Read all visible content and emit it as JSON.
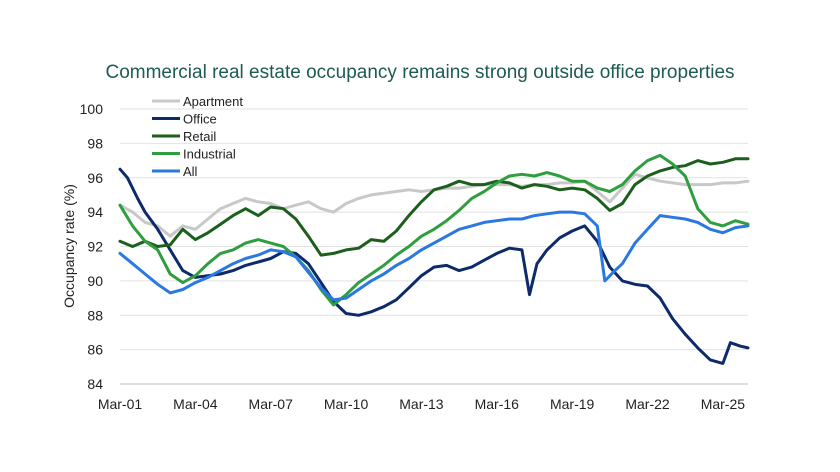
{
  "chart_data": {
    "type": "line",
    "title": "Commercial real estate occupancy remains strong outside office properties",
    "xlabel": "",
    "ylabel": "Occupancy rate (%)",
    "ylim": [
      84,
      100
    ],
    "yticks": [
      84,
      86,
      88,
      90,
      92,
      94,
      96,
      98,
      100
    ],
    "x_tick_labels": [
      "Mar-01",
      "Mar-04",
      "Mar-07",
      "Mar-10",
      "Mar-13",
      "Mar-16",
      "Mar-19",
      "Mar-22",
      "Mar-25"
    ],
    "x_start_year": 2001,
    "x_end_year": 2026,
    "grid": "horizontal",
    "legend_position": "top-left",
    "series": [
      {
        "name": "Apartment",
        "color": "#c8c8c8",
        "points": [
          [
            2001.0,
            94.4
          ],
          [
            2001.5,
            94.0
          ],
          [
            2002.0,
            93.4
          ],
          [
            2002.5,
            93.2
          ],
          [
            2003.0,
            92.6
          ],
          [
            2003.5,
            93.2
          ],
          [
            2004.0,
            93.0
          ],
          [
            2004.5,
            93.6
          ],
          [
            2005.0,
            94.2
          ],
          [
            2005.5,
            94.5
          ],
          [
            2006.0,
            94.8
          ],
          [
            2006.5,
            94.6
          ],
          [
            2007.0,
            94.5
          ],
          [
            2007.5,
            94.2
          ],
          [
            2008.0,
            94.4
          ],
          [
            2008.5,
            94.6
          ],
          [
            2009.0,
            94.2
          ],
          [
            2009.5,
            94.0
          ],
          [
            2010.0,
            94.5
          ],
          [
            2010.5,
            94.8
          ],
          [
            2011.0,
            95.0
          ],
          [
            2011.5,
            95.1
          ],
          [
            2012.0,
            95.2
          ],
          [
            2012.5,
            95.3
          ],
          [
            2013.0,
            95.2
          ],
          [
            2013.5,
            95.3
          ],
          [
            2014.0,
            95.4
          ],
          [
            2014.5,
            95.4
          ],
          [
            2015.0,
            95.5
          ],
          [
            2015.5,
            95.6
          ],
          [
            2016.0,
            95.6
          ],
          [
            2016.5,
            95.6
          ],
          [
            2017.0,
            95.5
          ],
          [
            2017.5,
            95.6
          ],
          [
            2018.0,
            95.6
          ],
          [
            2018.5,
            95.7
          ],
          [
            2019.0,
            95.7
          ],
          [
            2019.5,
            95.8
          ],
          [
            2020.0,
            95.2
          ],
          [
            2020.5,
            94.6
          ],
          [
            2021.0,
            95.4
          ],
          [
            2021.5,
            96.2
          ],
          [
            2022.0,
            96.0
          ],
          [
            2022.5,
            95.8
          ],
          [
            2023.0,
            95.7
          ],
          [
            2023.5,
            95.6
          ],
          [
            2024.0,
            95.6
          ],
          [
            2024.5,
            95.6
          ],
          [
            2025.0,
            95.7
          ],
          [
            2025.5,
            95.7
          ],
          [
            2026.0,
            95.8
          ]
        ]
      },
      {
        "name": "Office",
        "color": "#0d2a6b",
        "points": [
          [
            2001.0,
            96.5
          ],
          [
            2001.3,
            96.0
          ],
          [
            2001.7,
            94.8
          ],
          [
            2002.0,
            94.0
          ],
          [
            2002.5,
            93.0
          ],
          [
            2003.0,
            91.8
          ],
          [
            2003.5,
            90.6
          ],
          [
            2004.0,
            90.2
          ],
          [
            2004.5,
            90.3
          ],
          [
            2005.0,
            90.4
          ],
          [
            2005.5,
            90.6
          ],
          [
            2006.0,
            90.9
          ],
          [
            2006.5,
            91.1
          ],
          [
            2007.0,
            91.3
          ],
          [
            2007.5,
            91.7
          ],
          [
            2008.0,
            91.6
          ],
          [
            2008.5,
            91.0
          ],
          [
            2009.0,
            89.9
          ],
          [
            2009.5,
            88.8
          ],
          [
            2010.0,
            88.1
          ],
          [
            2010.5,
            88.0
          ],
          [
            2011.0,
            88.2
          ],
          [
            2011.5,
            88.5
          ],
          [
            2012.0,
            88.9
          ],
          [
            2012.5,
            89.6
          ],
          [
            2013.0,
            90.3
          ],
          [
            2013.5,
            90.8
          ],
          [
            2014.0,
            90.9
          ],
          [
            2014.5,
            90.6
          ],
          [
            2015.0,
            90.8
          ],
          [
            2015.5,
            91.2
          ],
          [
            2016.0,
            91.6
          ],
          [
            2016.5,
            91.9
          ],
          [
            2017.0,
            91.8
          ],
          [
            2017.3,
            89.2
          ],
          [
            2017.6,
            91.0
          ],
          [
            2018.0,
            91.8
          ],
          [
            2018.5,
            92.5
          ],
          [
            2019.0,
            92.9
          ],
          [
            2019.5,
            93.2
          ],
          [
            2020.0,
            92.3
          ],
          [
            2020.5,
            90.8
          ],
          [
            2021.0,
            90.0
          ],
          [
            2021.5,
            89.8
          ],
          [
            2022.0,
            89.7
          ],
          [
            2022.5,
            89.0
          ],
          [
            2023.0,
            87.8
          ],
          [
            2023.5,
            86.9
          ],
          [
            2024.0,
            86.1
          ],
          [
            2024.5,
            85.4
          ],
          [
            2025.0,
            85.2
          ],
          [
            2025.3,
            86.4
          ],
          [
            2025.7,
            86.2
          ],
          [
            2026.0,
            86.1
          ]
        ]
      },
      {
        "name": "Retail",
        "color": "#1c5e1c",
        "points": [
          [
            2001.0,
            92.3
          ],
          [
            2001.5,
            92.0
          ],
          [
            2002.0,
            92.3
          ],
          [
            2002.5,
            92.0
          ],
          [
            2003.0,
            92.1
          ],
          [
            2003.5,
            93.0
          ],
          [
            2004.0,
            92.4
          ],
          [
            2004.5,
            92.8
          ],
          [
            2005.0,
            93.3
          ],
          [
            2005.5,
            93.8
          ],
          [
            2006.0,
            94.2
          ],
          [
            2006.5,
            93.8
          ],
          [
            2007.0,
            94.3
          ],
          [
            2007.5,
            94.2
          ],
          [
            2008.0,
            93.6
          ],
          [
            2008.5,
            92.6
          ],
          [
            2009.0,
            91.5
          ],
          [
            2009.5,
            91.6
          ],
          [
            2010.0,
            91.8
          ],
          [
            2010.5,
            91.9
          ],
          [
            2011.0,
            92.4
          ],
          [
            2011.5,
            92.3
          ],
          [
            2012.0,
            92.9
          ],
          [
            2012.5,
            93.8
          ],
          [
            2013.0,
            94.6
          ],
          [
            2013.5,
            95.3
          ],
          [
            2014.0,
            95.5
          ],
          [
            2014.5,
            95.8
          ],
          [
            2015.0,
            95.6
          ],
          [
            2015.5,
            95.6
          ],
          [
            2016.0,
            95.8
          ],
          [
            2016.5,
            95.7
          ],
          [
            2017.0,
            95.4
          ],
          [
            2017.5,
            95.6
          ],
          [
            2018.0,
            95.5
          ],
          [
            2018.5,
            95.3
          ],
          [
            2019.0,
            95.4
          ],
          [
            2019.5,
            95.3
          ],
          [
            2020.0,
            94.8
          ],
          [
            2020.5,
            94.1
          ],
          [
            2021.0,
            94.5
          ],
          [
            2021.5,
            95.6
          ],
          [
            2022.0,
            96.1
          ],
          [
            2022.5,
            96.4
          ],
          [
            2023.0,
            96.6
          ],
          [
            2023.5,
            96.7
          ],
          [
            2024.0,
            97.0
          ],
          [
            2024.5,
            96.8
          ],
          [
            2025.0,
            96.9
          ],
          [
            2025.5,
            97.1
          ],
          [
            2026.0,
            97.1
          ]
        ]
      },
      {
        "name": "Industrial",
        "color": "#2e9e3e",
        "points": [
          [
            2001.0,
            94.4
          ],
          [
            2001.5,
            93.2
          ],
          [
            2002.0,
            92.3
          ],
          [
            2002.5,
            91.8
          ],
          [
            2003.0,
            90.4
          ],
          [
            2003.5,
            89.9
          ],
          [
            2004.0,
            90.3
          ],
          [
            2004.5,
            91.0
          ],
          [
            2005.0,
            91.6
          ],
          [
            2005.5,
            91.8
          ],
          [
            2006.0,
            92.2
          ],
          [
            2006.5,
            92.4
          ],
          [
            2007.0,
            92.2
          ],
          [
            2007.5,
            92.0
          ],
          [
            2008.0,
            91.4
          ],
          [
            2008.5,
            90.6
          ],
          [
            2009.0,
            89.5
          ],
          [
            2009.5,
            88.6
          ],
          [
            2010.0,
            89.2
          ],
          [
            2010.5,
            89.9
          ],
          [
            2011.0,
            90.4
          ],
          [
            2011.5,
            90.9
          ],
          [
            2012.0,
            91.5
          ],
          [
            2012.5,
            92.0
          ],
          [
            2013.0,
            92.6
          ],
          [
            2013.5,
            93.0
          ],
          [
            2014.0,
            93.5
          ],
          [
            2014.5,
            94.1
          ],
          [
            2015.0,
            94.8
          ],
          [
            2015.5,
            95.2
          ],
          [
            2016.0,
            95.7
          ],
          [
            2016.5,
            96.1
          ],
          [
            2017.0,
            96.2
          ],
          [
            2017.5,
            96.1
          ],
          [
            2018.0,
            96.3
          ],
          [
            2018.5,
            96.1
          ],
          [
            2019.0,
            95.8
          ],
          [
            2019.5,
            95.8
          ],
          [
            2020.0,
            95.4
          ],
          [
            2020.5,
            95.2
          ],
          [
            2021.0,
            95.6
          ],
          [
            2021.5,
            96.4
          ],
          [
            2022.0,
            97.0
          ],
          [
            2022.5,
            97.3
          ],
          [
            2023.0,
            96.8
          ],
          [
            2023.5,
            96.1
          ],
          [
            2024.0,
            94.2
          ],
          [
            2024.5,
            93.4
          ],
          [
            2025.0,
            93.2
          ],
          [
            2025.5,
            93.5
          ],
          [
            2026.0,
            93.3
          ]
        ]
      },
      {
        "name": "All",
        "color": "#2a78e0",
        "points": [
          [
            2001.0,
            91.6
          ],
          [
            2001.5,
            91.0
          ],
          [
            2002.0,
            90.4
          ],
          [
            2002.5,
            89.8
          ],
          [
            2003.0,
            89.3
          ],
          [
            2003.5,
            89.5
          ],
          [
            2004.0,
            89.9
          ],
          [
            2004.5,
            90.2
          ],
          [
            2005.0,
            90.6
          ],
          [
            2005.5,
            91.0
          ],
          [
            2006.0,
            91.3
          ],
          [
            2006.5,
            91.5
          ],
          [
            2007.0,
            91.8
          ],
          [
            2007.5,
            91.7
          ],
          [
            2008.0,
            91.4
          ],
          [
            2008.5,
            90.5
          ],
          [
            2009.0,
            89.6
          ],
          [
            2009.5,
            88.9
          ],
          [
            2010.0,
            89.0
          ],
          [
            2010.5,
            89.5
          ],
          [
            2011.0,
            90.0
          ],
          [
            2011.5,
            90.4
          ],
          [
            2012.0,
            90.9
          ],
          [
            2012.5,
            91.3
          ],
          [
            2013.0,
            91.8
          ],
          [
            2013.5,
            92.2
          ],
          [
            2014.0,
            92.6
          ],
          [
            2014.5,
            93.0
          ],
          [
            2015.0,
            93.2
          ],
          [
            2015.5,
            93.4
          ],
          [
            2016.0,
            93.5
          ],
          [
            2016.5,
            93.6
          ],
          [
            2017.0,
            93.6
          ],
          [
            2017.5,
            93.8
          ],
          [
            2018.0,
            93.9
          ],
          [
            2018.5,
            94.0
          ],
          [
            2019.0,
            94.0
          ],
          [
            2019.5,
            93.9
          ],
          [
            2020.0,
            93.2
          ],
          [
            2020.3,
            90.0
          ],
          [
            2020.7,
            90.6
          ],
          [
            2021.0,
            91.0
          ],
          [
            2021.5,
            92.2
          ],
          [
            2022.0,
            93.0
          ],
          [
            2022.5,
            93.8
          ],
          [
            2023.0,
            93.7
          ],
          [
            2023.5,
            93.6
          ],
          [
            2024.0,
            93.4
          ],
          [
            2024.5,
            93.0
          ],
          [
            2025.0,
            92.8
          ],
          [
            2025.5,
            93.1
          ],
          [
            2026.0,
            93.2
          ]
        ]
      }
    ]
  }
}
